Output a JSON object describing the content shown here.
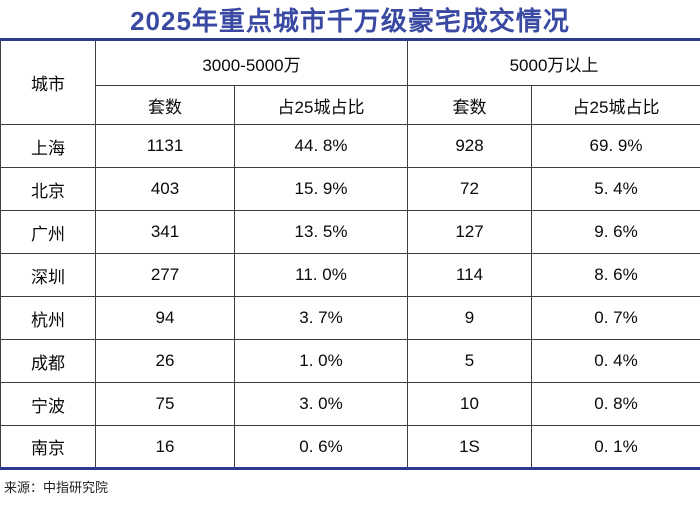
{
  "title": "2025年重点城市千万级豪宅成交情况",
  "source_note": "来源：中指研究院",
  "colors": {
    "title_blue": "#3a49a2",
    "thick_border_blue": "#2e3a8c",
    "grid_line": "#3d3d3d",
    "background": "#ffffff"
  },
  "table": {
    "corner_header": "城市",
    "groups": [
      {
        "label": "3000-5000万",
        "columns": [
          "套数",
          "占25城占比"
        ]
      },
      {
        "label": "5000万以上",
        "columns": [
          "套数",
          "占25城占比"
        ]
      }
    ],
    "rows": [
      {
        "city": "上海",
        "values": [
          "1131",
          "44. 8%",
          "928",
          "69. 9%"
        ]
      },
      {
        "city": "北京",
        "values": [
          "403",
          "15. 9%",
          "72",
          "5. 4%"
        ]
      },
      {
        "city": "广州",
        "values": [
          "341",
          "13. 5%",
          "127",
          "9. 6%"
        ]
      },
      {
        "city": "深圳",
        "values": [
          "277",
          "11. 0%",
          "114",
          "8. 6%"
        ]
      },
      {
        "city": "杭州",
        "values": [
          "94",
          "3. 7%",
          "9",
          "0. 7%"
        ]
      },
      {
        "city": "成都",
        "values": [
          "26",
          "1. 0%",
          "5",
          "0. 4%"
        ]
      },
      {
        "city": "宁波",
        "values": [
          "75",
          "3. 0%",
          "10",
          "0. 8%"
        ]
      },
      {
        "city": "南京",
        "values": [
          "16",
          "0. 6%",
          "1S",
          "0. 1%"
        ]
      }
    ]
  },
  "chart_data": {
    "type": "table",
    "title": "2025年重点城市千万级豪宅成交情况",
    "categories": [
      "上海",
      "北京",
      "广州",
      "深圳",
      "杭州",
      "成都",
      "宁波",
      "南京"
    ],
    "series": [
      {
        "name": "3000-5000万 套数",
        "values": [
          1131,
          403,
          341,
          277,
          94,
          26,
          75,
          16
        ]
      },
      {
        "name": "3000-5000万 占25城占比",
        "values": [
          "44.8%",
          "15.9%",
          "13.5%",
          "11.0%",
          "3.7%",
          "1.0%",
          "3.0%",
          "0.6%"
        ]
      },
      {
        "name": "5000万以上 套数",
        "values": [
          "928",
          "72",
          "127",
          "114",
          "9",
          "5",
          "10",
          "1S"
        ]
      },
      {
        "name": "5000万以上 占25城占比",
        "values": [
          "69.9%",
          "5.4%",
          "9.6%",
          "8.6%",
          "0.7%",
          "0.4%",
          "0.8%",
          "0.1%"
        ]
      }
    ],
    "source": "来源：中指研究院",
    "legend_position": "none",
    "grid": true
  }
}
